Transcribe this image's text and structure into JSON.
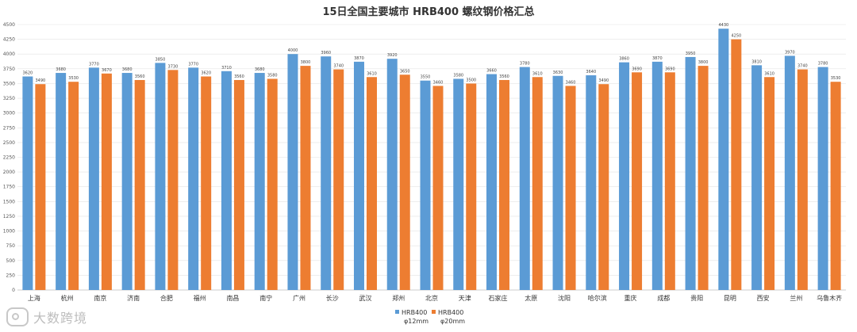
{
  "chart_data": {
    "type": "bar",
    "title": "15日全国主要城市 HRB400 螺纹钢价格汇总",
    "categories": [
      "上海",
      "杭州",
      "南京",
      "济南",
      "合肥",
      "福州",
      "南昌",
      "南宁",
      "广州",
      "长沙",
      "武汉",
      "郑州",
      "北京",
      "天津",
      "石家庄",
      "太原",
      "沈阳",
      "哈尔滨",
      "重庆",
      "成都",
      "贵阳",
      "昆明",
      "西安",
      "兰州",
      "乌鲁木齐"
    ],
    "series": [
      {
        "name_line1": "HRB400",
        "name_line2": "φ12mm",
        "color": "#5b9bd5",
        "values": [
          3620,
          3680,
          3770,
          3680,
          3850,
          3770,
          3710,
          3680,
          4000,
          3960,
          3870,
          3920,
          3550,
          3580,
          3660,
          3780,
          3630,
          3640,
          3860,
          3870,
          3950,
          4430,
          3810,
          3970,
          3780
        ]
      },
      {
        "name_line1": "HRB400",
        "name_line2": "φ20mm",
        "color": "#ed7d31",
        "values": [
          3490,
          3530,
          3670,
          3560,
          3730,
          3620,
          3560,
          3580,
          3800,
          3740,
          3610,
          3650,
          3460,
          3500,
          3560,
          3610,
          3460,
          3490,
          3690,
          3690,
          3800,
          4250,
          3610,
          3740,
          3530
        ]
      }
    ],
    "ylim": [
      0,
      4500
    ],
    "yticks": [
      0,
      250,
      500,
      750,
      1000,
      1250,
      1500,
      1750,
      2000,
      2250,
      2500,
      2750,
      3000,
      3250,
      3500,
      3750,
      4000,
      4250,
      4500
    ],
    "grid": true,
    "legend": "bottom"
  },
  "watermark": {
    "text": "大数跨境",
    "icon": "brand-logo-icon"
  }
}
